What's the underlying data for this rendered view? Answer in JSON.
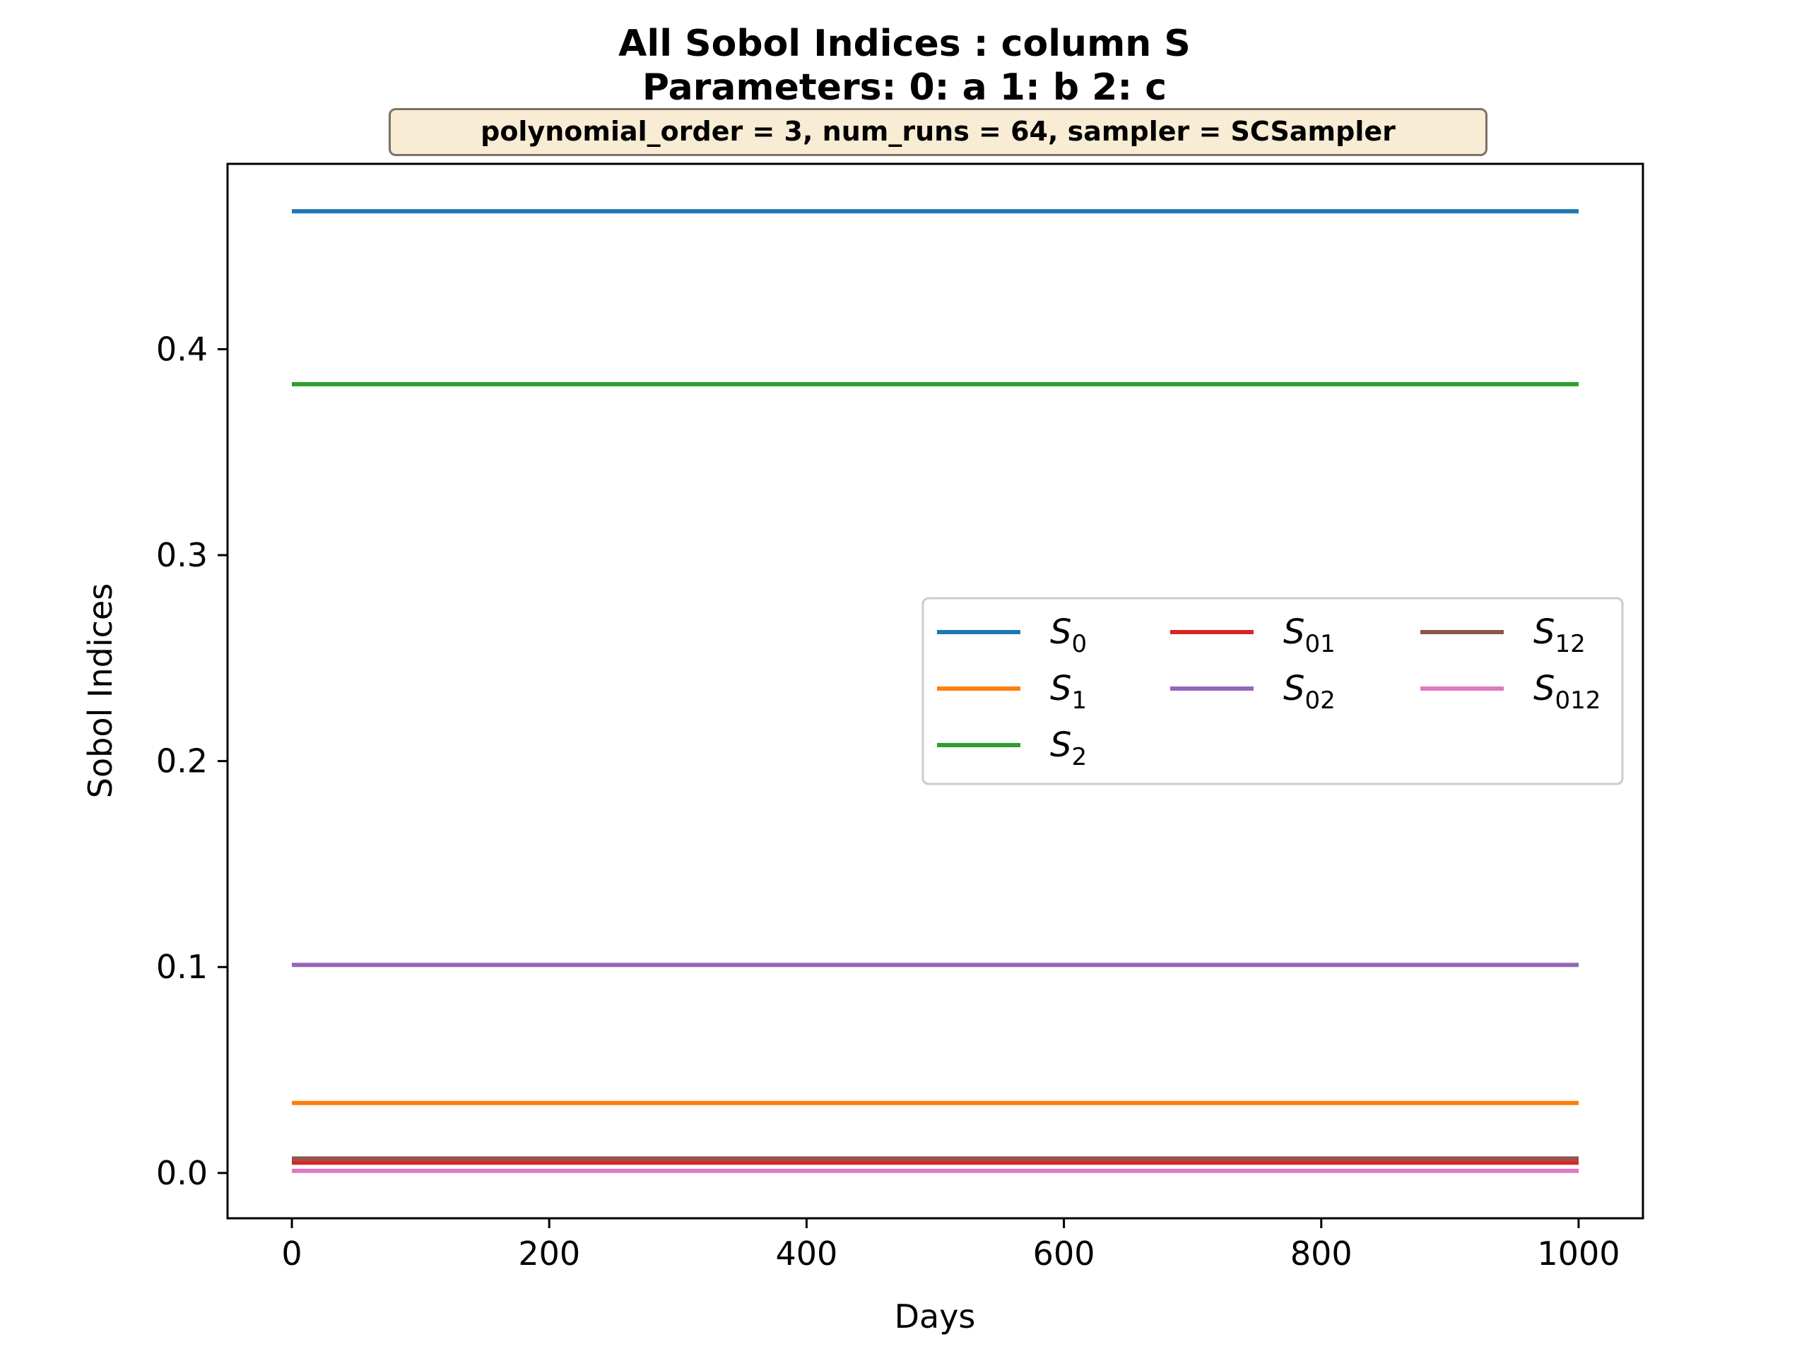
{
  "chart_data": {
    "type": "line",
    "title": "All Sobol Indices : column S",
    "title_line2": "Parameters: 0: a 1: b 2: c",
    "annotation": "polynomial_order = 3, num_runs = 64, sampler = SCSampler",
    "xlabel": "Days",
    "ylabel": "Sobol Indices",
    "xlim": [
      -50,
      1050
    ],
    "ylim": [
      -0.022,
      0.49
    ],
    "xticks": [
      0,
      200,
      400,
      600,
      800,
      1000
    ],
    "xtick_labels": [
      "0",
      "200",
      "400",
      "600",
      "800",
      "1000"
    ],
    "yticks": [
      0.0,
      0.1,
      0.2,
      0.3,
      0.4
    ],
    "ytick_labels": [
      "0.0",
      "0.1",
      "0.2",
      "0.3",
      "0.4"
    ],
    "grid": false,
    "legend_position": "center-right",
    "x": [
      0,
      1000
    ],
    "series": [
      {
        "name": "S0",
        "base": "S",
        "sub": "0",
        "color": "#1f77b4",
        "values": [
          0.467,
          0.467
        ]
      },
      {
        "name": "S1",
        "base": "S",
        "sub": "1",
        "color": "#ff7f0e",
        "values": [
          0.034,
          0.034
        ]
      },
      {
        "name": "S2",
        "base": "S",
        "sub": "2",
        "color": "#2ca02c",
        "values": [
          0.383,
          0.383
        ]
      },
      {
        "name": "S01",
        "base": "S",
        "sub": "01",
        "color": "#d62728",
        "values": [
          0.005,
          0.005
        ]
      },
      {
        "name": "S02",
        "base": "S",
        "sub": "02",
        "color": "#9467bd",
        "values": [
          0.101,
          0.101
        ]
      },
      {
        "name": "S12",
        "base": "S",
        "sub": "12",
        "color": "#8c564b",
        "values": [
          0.007,
          0.007
        ]
      },
      {
        "name": "S012",
        "base": "S",
        "sub": "012",
        "color": "#e377c2",
        "values": [
          0.001,
          0.001
        ]
      }
    ]
  }
}
